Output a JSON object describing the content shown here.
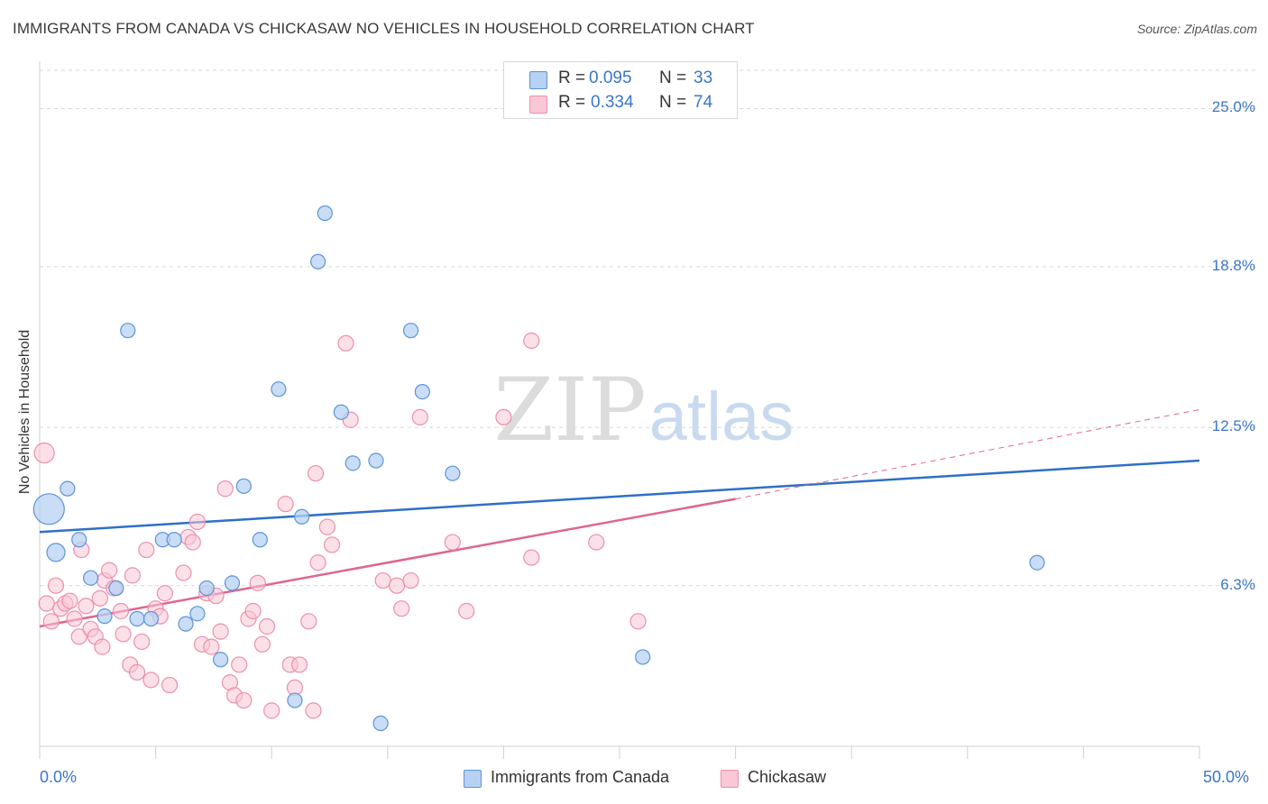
{
  "header": {
    "title": "IMMIGRANTS FROM CANADA VS CHICKASAW NO VEHICLES IN HOUSEHOLD CORRELATION CHART",
    "source": "Source: ZipAtlas.com"
  },
  "legend_top": {
    "rows": [
      {
        "r_label": "R =",
        "r_value": "0.095",
        "n_label": "N =",
        "n_value": "33"
      },
      {
        "r_label": "R =",
        "r_value": "0.334",
        "n_label": "N =",
        "n_value": "74"
      }
    ]
  },
  "legend_bottom": {
    "items": [
      {
        "label": "Immigrants from Canada"
      },
      {
        "label": "Chickasaw"
      }
    ]
  },
  "watermark": {
    "zip": "ZIP",
    "atlas": "atlas"
  },
  "colors": {
    "blue_fill": "#b7d1f3",
    "blue_stroke": "#5d93d8",
    "blue_line": "#2f6fc9",
    "pink_fill": "#f9c7d6",
    "pink_stroke": "#ec8fac",
    "pink_line": "#e0658f",
    "axis_label": "#3a76c9",
    "grid": "#d9d9d9"
  },
  "chart_data": {
    "type": "scatter",
    "title": "IMMIGRANTS FROM CANADA VS CHICKASAW NO VEHICLES IN HOUSEHOLD CORRELATION CHART",
    "xlabel": "",
    "ylabel": "No Vehicles in Household",
    "xlim": [
      0,
      50
    ],
    "ylim": [
      0,
      26.5
    ],
    "x_tick_labels": [
      "0.0%",
      "50.0%"
    ],
    "y_ticks": [
      6.3,
      12.5,
      18.8,
      25.0
    ],
    "y_tick_labels": [
      "6.3%",
      "12.5%",
      "18.8%",
      "25.0%"
    ],
    "grid": true,
    "legend_position": "top-center",
    "series": [
      {
        "name": "Immigrants from Canada",
        "points": [
          [
            0.4,
            9.3
          ],
          [
            0.7,
            7.6
          ],
          [
            1.2,
            10.1
          ],
          [
            1.7,
            8.1
          ],
          [
            2.2,
            6.6
          ],
          [
            2.8,
            5.1
          ],
          [
            3.3,
            6.2
          ],
          [
            3.8,
            16.3
          ],
          [
            4.2,
            5.0
          ],
          [
            4.8,
            5.0
          ],
          [
            5.3,
            8.1
          ],
          [
            5.8,
            8.1
          ],
          [
            6.3,
            4.8
          ],
          [
            6.8,
            5.2
          ],
          [
            7.2,
            6.2
          ],
          [
            7.8,
            3.4
          ],
          [
            8.3,
            6.4
          ],
          [
            8.8,
            10.2
          ],
          [
            9.5,
            8.1
          ],
          [
            10.3,
            14.0
          ],
          [
            11.0,
            1.8
          ],
          [
            11.3,
            9.0
          ],
          [
            12.0,
            19.0
          ],
          [
            12.3,
            20.9
          ],
          [
            13.0,
            13.1
          ],
          [
            13.5,
            11.1
          ],
          [
            14.5,
            11.2
          ],
          [
            14.7,
            0.9
          ],
          [
            16.0,
            16.3
          ],
          [
            16.5,
            13.9
          ],
          [
            17.8,
            10.7
          ],
          [
            26.0,
            3.5
          ],
          [
            43.0,
            7.2
          ]
        ],
        "sizes": {
          "0": "large",
          "1": "medium"
        },
        "trend": {
          "x0": 0,
          "y0": 8.4,
          "x1": 50,
          "y1": 11.2
        }
      },
      {
        "name": "Chickasaw",
        "points": [
          [
            0.2,
            11.5
          ],
          [
            0.3,
            5.6
          ],
          [
            0.5,
            4.9
          ],
          [
            0.7,
            6.3
          ],
          [
            0.9,
            5.4
          ],
          [
            1.1,
            5.6
          ],
          [
            1.3,
            5.7
          ],
          [
            1.5,
            5.0
          ],
          [
            1.7,
            4.3
          ],
          [
            1.8,
            7.7
          ],
          [
            2.0,
            5.5
          ],
          [
            2.2,
            4.6
          ],
          [
            2.4,
            4.3
          ],
          [
            2.6,
            5.8
          ],
          [
            2.7,
            3.9
          ],
          [
            2.8,
            6.5
          ],
          [
            3.0,
            6.9
          ],
          [
            3.2,
            6.2
          ],
          [
            3.5,
            5.3
          ],
          [
            3.6,
            4.4
          ],
          [
            3.9,
            3.2
          ],
          [
            4.0,
            6.7
          ],
          [
            4.2,
            2.9
          ],
          [
            4.4,
            4.1
          ],
          [
            4.6,
            7.7
          ],
          [
            4.8,
            2.6
          ],
          [
            5.0,
            5.4
          ],
          [
            5.2,
            5.1
          ],
          [
            5.4,
            6.0
          ],
          [
            5.6,
            2.4
          ],
          [
            6.2,
            6.8
          ],
          [
            6.4,
            8.2
          ],
          [
            6.6,
            8.0
          ],
          [
            6.8,
            8.8
          ],
          [
            7.0,
            4.0
          ],
          [
            7.2,
            6.0
          ],
          [
            7.4,
            3.9
          ],
          [
            7.6,
            5.9
          ],
          [
            7.8,
            4.5
          ],
          [
            8.0,
            10.1
          ],
          [
            8.2,
            2.5
          ],
          [
            8.4,
            2.0
          ],
          [
            8.6,
            3.2
          ],
          [
            8.8,
            1.8
          ],
          [
            9.0,
            5.0
          ],
          [
            9.2,
            5.3
          ],
          [
            9.4,
            6.4
          ],
          [
            9.6,
            4.0
          ],
          [
            9.8,
            4.7
          ],
          [
            10.0,
            1.4
          ],
          [
            10.6,
            9.5
          ],
          [
            10.8,
            3.2
          ],
          [
            11.0,
            2.3
          ],
          [
            11.2,
            3.2
          ],
          [
            11.6,
            4.9
          ],
          [
            11.8,
            1.4
          ],
          [
            11.9,
            10.7
          ],
          [
            12.0,
            7.2
          ],
          [
            12.4,
            8.6
          ],
          [
            12.6,
            7.9
          ],
          [
            13.2,
            15.8
          ],
          [
            13.4,
            12.8
          ],
          [
            14.8,
            6.5
          ],
          [
            15.4,
            6.3
          ],
          [
            15.6,
            5.4
          ],
          [
            16.0,
            6.5
          ],
          [
            16.4,
            12.9
          ],
          [
            17.8,
            8.0
          ],
          [
            18.4,
            5.3
          ],
          [
            20.0,
            12.9
          ],
          [
            21.2,
            15.9
          ],
          [
            21.2,
            7.4
          ],
          [
            24.0,
            8.0
          ],
          [
            25.8,
            4.9
          ]
        ],
        "trend": {
          "x0": 0,
          "y0": 4.7,
          "x1": 30,
          "y1": 9.7
        },
        "trend_extension": {
          "x0": 30,
          "y0": 9.7,
          "x1": 50,
          "y1": 13.2
        }
      }
    ]
  }
}
